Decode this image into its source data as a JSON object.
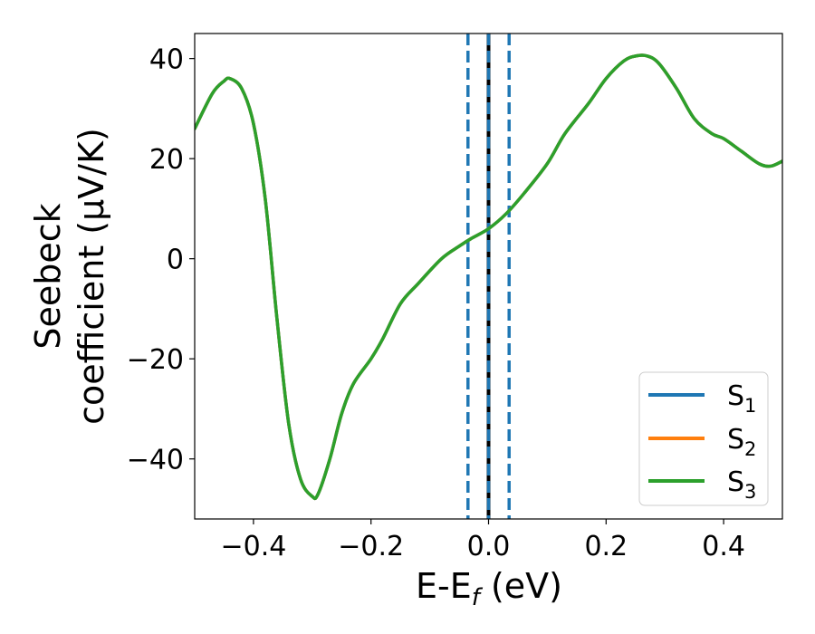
{
  "chart_data": {
    "type": "line",
    "xlabel": {
      "main": "E-E",
      "sub": "f",
      "unit": " (eV)"
    },
    "ylabel": {
      "line1": "Seebeck",
      "line2": "coefficient  (μV/K)"
    },
    "xlim": [
      -0.5,
      0.5
    ],
    "ylim": [
      -52,
      45
    ],
    "xticks": [
      -0.4,
      -0.2,
      0.0,
      0.2,
      0.4
    ],
    "xtick_labels": [
      "−0.4",
      "−0.2",
      "0.0",
      "0.2",
      "0.4"
    ],
    "yticks": [
      -40,
      -20,
      0,
      20,
      40
    ],
    "ytick_labels": [
      "−40",
      "−20",
      "0",
      "20",
      "40"
    ],
    "grid": false,
    "legend": {
      "placement": "lower-right",
      "entries": [
        {
          "base": "S",
          "sub": "1",
          "color": "#1f77b4"
        },
        {
          "base": "S",
          "sub": "2",
          "color": "#ff7f0e"
        },
        {
          "base": "S",
          "sub": "3",
          "color": "#2ca02c"
        }
      ]
    },
    "vertical_lines": [
      {
        "x": -0.035,
        "style": "dashed",
        "color": "#1f77b4"
      },
      {
        "x": 0.0,
        "style": "solid",
        "color": "#000000"
      },
      {
        "x": 0.0,
        "style": "dashed",
        "color": "#1f77b4"
      },
      {
        "x": 0.035,
        "style": "dashed",
        "color": "#1f77b4"
      }
    ],
    "x": [
      -0.5,
      -0.47,
      -0.45,
      -0.44,
      -0.42,
      -0.4,
      -0.38,
      -0.36,
      -0.34,
      -0.32,
      -0.3,
      -0.29,
      -0.27,
      -0.25,
      -0.23,
      -0.2,
      -0.18,
      -0.15,
      -0.12,
      -0.08,
      -0.05,
      -0.03,
      0.0,
      0.03,
      0.06,
      0.1,
      0.13,
      0.17,
      0.2,
      0.23,
      0.25,
      0.27,
      0.29,
      0.32,
      0.35,
      0.38,
      0.4,
      0.43,
      0.46,
      0.48,
      0.5
    ],
    "series": [
      {
        "name": "S1",
        "color": "#1f77b4",
        "values": [
          26,
          33,
          35.5,
          36,
          34,
          27,
          12,
          -12,
          -33,
          -44,
          -47.5,
          -47,
          -40,
          -31,
          -25,
          -20,
          -16,
          -9,
          -5,
          0,
          2.5,
          4,
          6,
          9,
          13,
          19,
          25,
          31,
          36,
          39.5,
          40.5,
          40.5,
          39,
          34,
          28,
          25,
          24,
          21.5,
          19,
          18.5,
          19.5
        ]
      },
      {
        "name": "S2",
        "color": "#ff7f0e",
        "values": [
          26,
          33,
          35.5,
          36,
          34,
          27,
          12,
          -12,
          -33,
          -44,
          -47.5,
          -47,
          -40,
          -31,
          -25,
          -20,
          -16,
          -9,
          -5,
          0,
          2.5,
          4,
          6,
          9,
          13,
          19,
          25,
          31,
          36,
          39.5,
          40.5,
          40.5,
          39,
          34,
          28,
          25,
          24,
          21.5,
          19,
          18.5,
          19.5
        ]
      },
      {
        "name": "S3",
        "color": "#2ca02c",
        "values": [
          26,
          33,
          35.5,
          36,
          34,
          27,
          12,
          -12,
          -33,
          -44,
          -47.5,
          -47,
          -40,
          -31,
          -25,
          -20,
          -16,
          -9,
          -5,
          0,
          2.5,
          4,
          6,
          9,
          13,
          19,
          25,
          31,
          36,
          39.5,
          40.5,
          40.5,
          39,
          34,
          28,
          25,
          24,
          21.5,
          19,
          18.5,
          19.5
        ]
      }
    ]
  }
}
